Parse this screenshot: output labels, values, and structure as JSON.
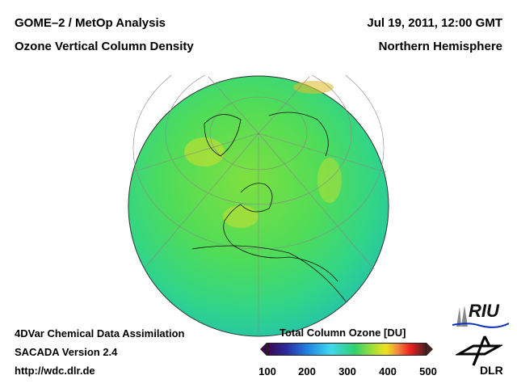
{
  "header": {
    "title_left_1": "GOME–2 / MetOp Analysis",
    "title_left_2": "Ozone Vertical Column Density",
    "title_right_1": "Jul 19, 2011, 12:00 GMT",
    "title_right_2": "Northern Hemisphere"
  },
  "footer": {
    "line1": "4DVar Chemical Data Assimilation",
    "line2": "SACADA Version 2.4",
    "line3": "http://wdc.dlr.de"
  },
  "colorbar": {
    "title": "Total Column Ozone [DU]",
    "ticks": [
      "100",
      "200",
      "300",
      "400",
      "500"
    ],
    "min": 100,
    "max": 500
  },
  "logos": {
    "riu": "RIU",
    "dlr": "DLR"
  }
}
